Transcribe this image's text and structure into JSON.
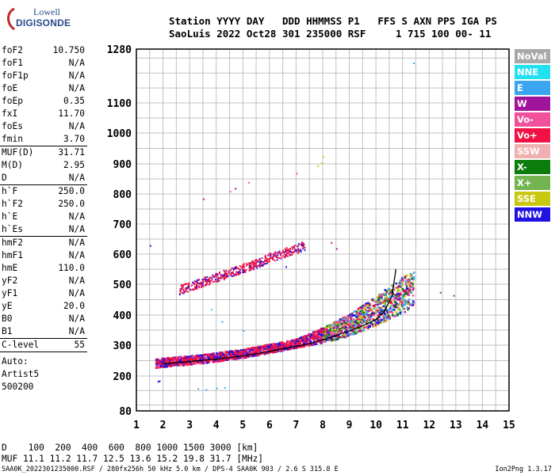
{
  "logo": {
    "line1": "Lowell",
    "line2": "DIGISONDE"
  },
  "header": {
    "line1": "Station YYYY DAY   DDD HHMMSS P1   FFS S AXN PPS IGA PS",
    "line2": "SaoLuis 2022 Oct28 301 235000 RSF     1 715 100 00- 11"
  },
  "params": {
    "group1": [
      {
        "name": "foF2",
        "value": "10.750"
      },
      {
        "name": "foF1",
        "value": "N/A"
      },
      {
        "name": "foF1p",
        "value": "N/A"
      },
      {
        "name": "foE",
        "value": "N/A"
      },
      {
        "name": "foEp",
        "value": "0.35"
      },
      {
        "name": "fxI",
        "value": "11.70"
      },
      {
        "name": "foEs",
        "value": "N/A"
      },
      {
        "name": "fmin",
        "value": "3.70"
      }
    ],
    "group2": [
      {
        "name": "MUF(D)",
        "value": "31.71"
      },
      {
        "name": "M(D)",
        "value": "2.95"
      },
      {
        "name": "D",
        "value": "N/A"
      }
    ],
    "group3": [
      {
        "name": "h`F",
        "value": "250.0"
      },
      {
        "name": "h`F2",
        "value": "250.0"
      },
      {
        "name": "h`E",
        "value": "N/A"
      },
      {
        "name": "h`Es",
        "value": "N/A"
      }
    ],
    "group4": [
      {
        "name": "hmF2",
        "value": "N/A"
      },
      {
        "name": "hmF1",
        "value": "N/A"
      },
      {
        "name": "hmE",
        "value": "110.0"
      },
      {
        "name": "yF2",
        "value": "N/A"
      },
      {
        "name": "yF1",
        "value": "N/A"
      },
      {
        "name": "yE",
        "value": "20.0"
      },
      {
        "name": "B0",
        "value": "N/A"
      },
      {
        "name": "B1",
        "value": "N/A"
      }
    ],
    "clevel": {
      "name": "C-level",
      "value": "55"
    },
    "auto_label": "Auto:",
    "auto_value": "Artist5",
    "auto_code": "500200"
  },
  "legend": [
    {
      "label": "NoVal",
      "color": "#a8a8a8"
    },
    {
      "label": "NNE",
      "color": "#22e0f0"
    },
    {
      "label": "E",
      "color": "#3aa6f0"
    },
    {
      "label": "W",
      "color": "#a0149c"
    },
    {
      "label": "Vo-",
      "color": "#f0509c"
    },
    {
      "label": "Vo+",
      "color": "#f01244"
    },
    {
      "label": "SSW",
      "color": "#f0b0b0"
    },
    {
      "label": "X-",
      "color": "#0c7c0c"
    },
    {
      "label": "X+",
      "color": "#74b450"
    },
    {
      "label": "SSE",
      "color": "#c8c810"
    },
    {
      "label": "NNW",
      "color": "#2012e0"
    }
  ],
  "chart_data": {
    "type": "scatter",
    "xlim": [
      1,
      15
    ],
    "ylim": [
      80,
      1280
    ],
    "x_ticks": [
      1,
      2,
      3,
      4,
      5,
      6,
      7,
      8,
      9,
      10,
      11,
      12,
      13,
      14,
      15
    ],
    "y_ticks": [
      80,
      200,
      300,
      400,
      500,
      600,
      700,
      800,
      900,
      1000,
      1100,
      1280
    ],
    "grid": true,
    "y_scale": "nonuniform",
    "trace": {
      "x": [
        2.0,
        2.5,
        3.0,
        3.5,
        4.0,
        4.5,
        5.0,
        5.5,
        6.0,
        6.5,
        7.0,
        7.5,
        8.0,
        8.5,
        9.0,
        9.5,
        10.0,
        10.3,
        10.6,
        10.75
      ],
      "y": [
        240,
        243,
        247,
        251,
        255,
        260,
        265,
        272,
        280,
        288,
        296,
        305,
        318,
        332,
        348,
        364,
        385,
        410,
        460,
        550
      ]
    },
    "echo_bands": [
      {
        "name": "first hop",
        "color": "Vo+",
        "points_x": [
          1.7,
          2.0,
          2.5,
          3.0,
          3.5,
          4.0,
          4.5,
          5.0,
          5.5,
          6.0,
          6.5,
          7.0,
          7.5,
          8.0,
          8.5,
          9.0,
          9.5,
          10.0,
          10.5,
          11.0,
          11.3
        ],
        "points_y": [
          240,
          243,
          247,
          250,
          255,
          260,
          266,
          272,
          280,
          288,
          296,
          305,
          318,
          330,
          345,
          362,
          382,
          405,
          430,
          455,
          470
        ]
      },
      {
        "name": "second hop",
        "color": "Vo+",
        "points_x": [
          2.6,
          3.0,
          3.5,
          4.0,
          4.5,
          5.0,
          5.5,
          6.0,
          6.5,
          7.0,
          7.3
        ],
        "points_y": [
          478,
          490,
          505,
          520,
          535,
          550,
          565,
          585,
          600,
          615,
          625
        ]
      }
    ]
  },
  "muf_table": {
    "d_label": "D",
    "d_values": [
      "100",
      "200",
      "400",
      "600",
      "800",
      "1000",
      "1500",
      "3000"
    ],
    "d_unit": "[km]",
    "muf_label": "MUF",
    "muf_values": [
      "11.1",
      "11.2",
      "11.7",
      "12.5",
      "13.6",
      "15.2",
      "19.8",
      "31.7"
    ],
    "muf_unit": "[MHz]"
  },
  "footer": {
    "info": "SAA0K_2022301235000.RSF / 280fx256h 50 kHz 5.0 km / DPS-4 SAA0K 903 / 2.6 S 315.8 E",
    "version": "Ion2Png 1.3.17"
  }
}
